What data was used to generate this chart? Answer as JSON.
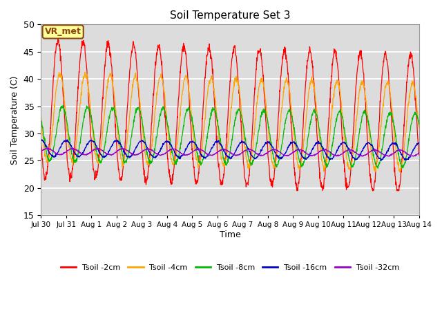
{
  "title": "Soil Temperature Set 3",
  "xlabel": "Time",
  "ylabel": "Soil Temperature (C)",
  "ylim": [
    15,
    50
  ],
  "yticks": [
    15,
    20,
    25,
    30,
    35,
    40,
    45,
    50
  ],
  "n_points": 1440,
  "station_label": "VR_met",
  "series": [
    {
      "label": "Tsoil -2cm",
      "color": "#FF0000",
      "amplitude": 12.5,
      "mean": 34.5,
      "phase_shift": 0.42,
      "noise": 0.4,
      "trend": -0.18,
      "clip_min": 19.5,
      "clip_max": 50
    },
    {
      "label": "Tsoil -4cm",
      "color": "#FFA500",
      "amplitude": 8.0,
      "mean": 33.0,
      "phase_shift": 0.5,
      "noise": 0.3,
      "trend": -0.12,
      "clip_min": 23,
      "clip_max": 50
    },
    {
      "label": "Tsoil -8cm",
      "color": "#00BB00",
      "amplitude": 5.0,
      "mean": 30.0,
      "phase_shift": 0.6,
      "noise": 0.2,
      "trend": -0.08,
      "clip_min": 23,
      "clip_max": 50
    },
    {
      "label": "Tsoil -16cm",
      "color": "#0000CC",
      "amplitude": 1.5,
      "mean": 27.3,
      "phase_shift": 0.75,
      "noise": 0.1,
      "trend": -0.04,
      "clip_min": 24,
      "clip_max": 31
    },
    {
      "label": "Tsoil -32cm",
      "color": "#9900CC",
      "amplitude": 0.55,
      "mean": 26.7,
      "phase_shift": 1.0,
      "noise": 0.05,
      "trend": -0.02,
      "clip_min": 25,
      "clip_max": 28
    }
  ],
  "bg_color": "#DCDCDC",
  "grid_color": "#FFFFFF",
  "xtick_labels": [
    "Jul 30",
    "Jul 31",
    "Aug 1",
    "Aug 2",
    "Aug 3",
    "Aug 4",
    "Aug 5",
    "Aug 6",
    "Aug 7",
    "Aug 8",
    "Aug 9",
    "Aug 10",
    "Aug 11",
    "Aug 12",
    "Aug 13",
    "Aug 14"
  ],
  "xtick_positions": [
    0,
    1,
    2,
    3,
    4,
    5,
    6,
    7,
    8,
    9,
    10,
    11,
    12,
    13,
    14,
    15
  ]
}
